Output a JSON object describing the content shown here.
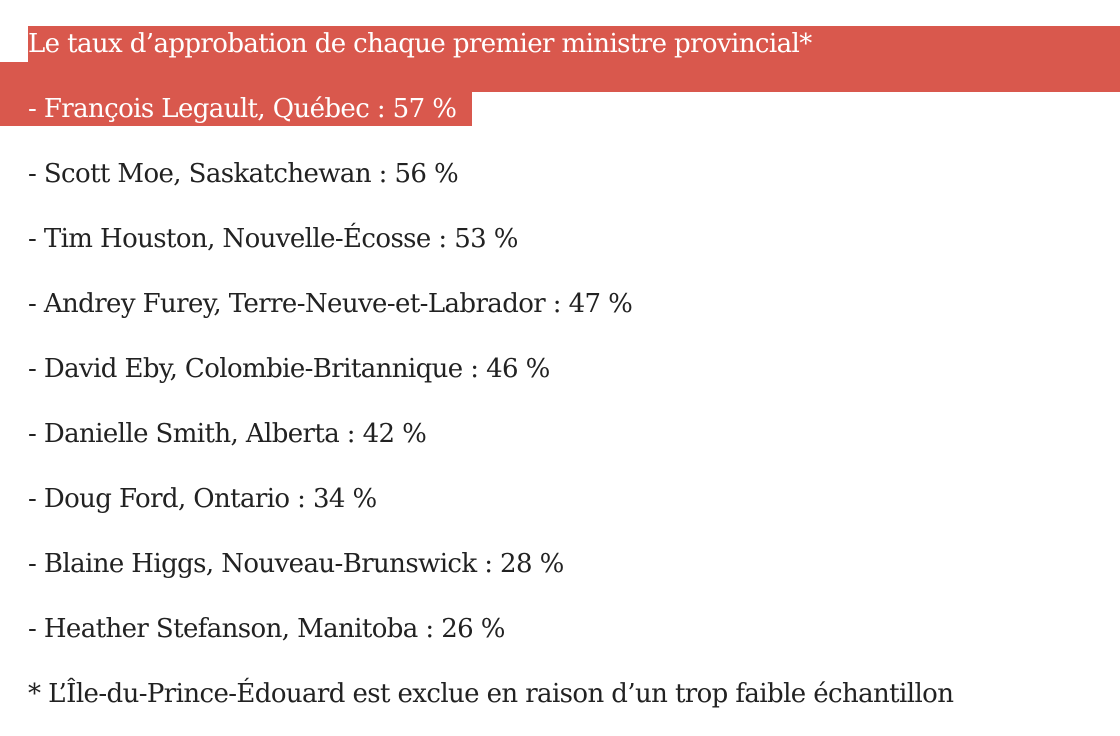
{
  "heading": "Le taux d’approbation de chaque premier ministre provincial*",
  "items": [
    "- François Legault, Québec : 57 %",
    "- Scott Moe, Saskatchewan : 56 %",
    "- Tim Houston, Nouvelle-Écosse : 53 %",
    "- Andrey Furey, Terre-Neuve-et-Labrador : 47 %",
    "- David Eby, Colombie-Britannique : 46 %",
    "- Danielle Smith, Alberta : 42 %",
    "- Doug Ford, Ontario : 34 %",
    "- Blaine Higgs, Nouveau-Brunswick : 28 %",
    "- Heather Stefanson, Manitoba : 26 %"
  ],
  "footnote": "* L’Île-du-Prince-Édouard est exclue en raison d’un trop faible échantillon",
  "colors": {
    "highlight": "#d9584d",
    "text": "#222222",
    "highlight_text": "#ffffff"
  }
}
